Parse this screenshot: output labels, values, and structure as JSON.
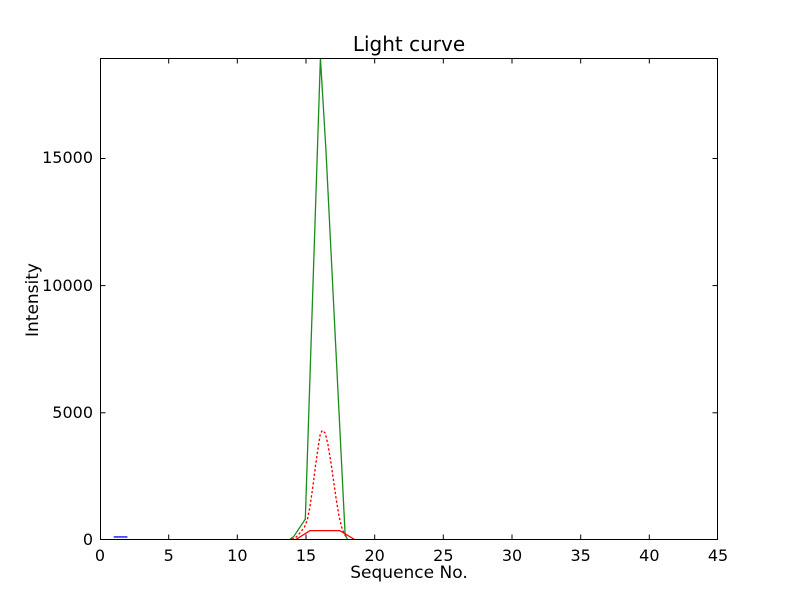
{
  "chart_data": {
    "type": "line",
    "title": "Light curve",
    "xlabel": "Sequence No.",
    "ylabel": "Intensity",
    "xlim": [
      0,
      45
    ],
    "ylim": [
      0,
      18950
    ],
    "xticks": [
      0,
      5,
      10,
      15,
      20,
      25,
      30,
      35,
      40,
      45
    ],
    "yticks": [
      0,
      5000,
      10000,
      15000
    ],
    "grid": false,
    "legend": "none",
    "background_color": "#ffffff",
    "spine_color": "#000000",
    "series": [
      {
        "name": "intensity-green-solid",
        "color": "#1a8c1a",
        "style": "solid",
        "points": [
          [
            0,
            0
          ],
          [
            13.75,
            0
          ],
          [
            14.1,
            130
          ],
          [
            14.95,
            820
          ],
          [
            16.05,
            18950
          ],
          [
            16.45,
            15350
          ],
          [
            17.85,
            200
          ],
          [
            18.05,
            0
          ],
          [
            45,
            0
          ]
        ]
      },
      {
        "name": "fit-red-dotted",
        "color": "#ff0000",
        "style": "dotted",
        "points": [
          [
            14.0,
            30
          ],
          [
            14.3,
            120
          ],
          [
            14.6,
            300
          ],
          [
            14.9,
            520
          ],
          [
            15.1,
            800
          ],
          [
            15.3,
            1350
          ],
          [
            15.5,
            2100
          ],
          [
            15.7,
            2950
          ],
          [
            15.9,
            3700
          ],
          [
            16.05,
            4200
          ],
          [
            16.2,
            4310
          ],
          [
            16.4,
            4200
          ],
          [
            16.6,
            3750
          ],
          [
            16.8,
            3100
          ],
          [
            17.0,
            2350
          ],
          [
            17.2,
            1600
          ],
          [
            17.4,
            950
          ],
          [
            17.6,
            500
          ],
          [
            17.8,
            220
          ],
          [
            18.0,
            80
          ]
        ]
      },
      {
        "name": "background-red-solid",
        "color": "#ff0000",
        "style": "solid",
        "points": [
          [
            0,
            0
          ],
          [
            14.2,
            0
          ],
          [
            15.3,
            370
          ],
          [
            17.45,
            370
          ],
          [
            18.6,
            0
          ],
          [
            45,
            0
          ]
        ]
      },
      {
        "name": "blue-segment",
        "color": "#0000ff",
        "style": "solid",
        "points": [
          [
            1.0,
            120
          ],
          [
            2.0,
            120
          ]
        ]
      }
    ]
  }
}
